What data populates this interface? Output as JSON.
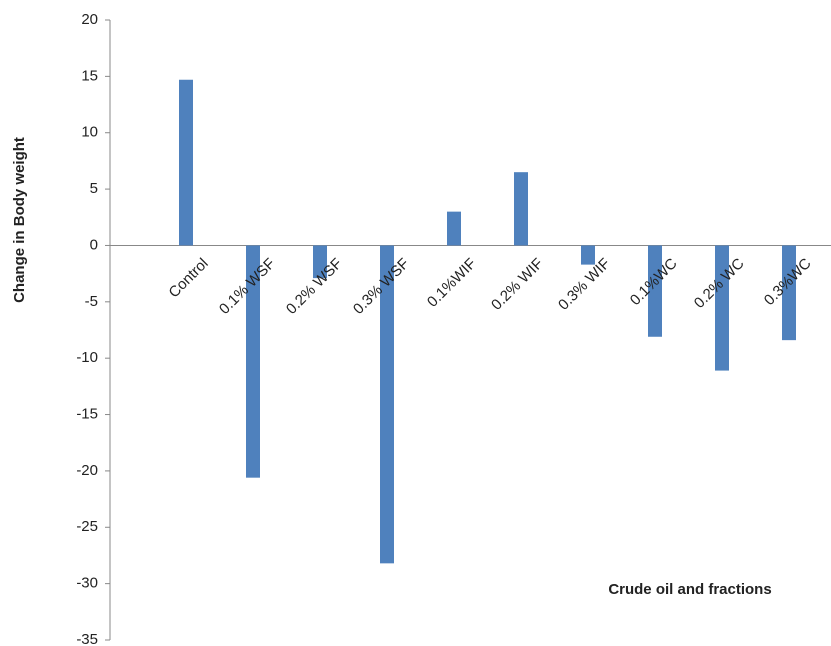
{
  "chart_data": {
    "type": "bar",
    "xlabel": "Crude oil and fractions",
    "ylabel": "Change in Body weight",
    "categories": [
      "Control",
      "0.1% WSF",
      "0.2% WSF",
      "0.3% WSF",
      "0.1%WIF",
      "0.2% WIF",
      "0.3% WIF",
      "0.1%WC",
      "0.2% WC",
      "0.3%WC"
    ],
    "values": [
      14.7,
      -20.6,
      -2.9,
      -28.2,
      3.0,
      6.5,
      -1.7,
      -8.1,
      -11.1,
      -8.4
    ],
    "color": "#4f81bd",
    "ylim": [
      -35,
      20
    ],
    "yticks": [
      -35,
      -30,
      -25,
      -20,
      -15,
      -10,
      -5,
      0,
      5,
      10,
      15,
      20
    ]
  }
}
